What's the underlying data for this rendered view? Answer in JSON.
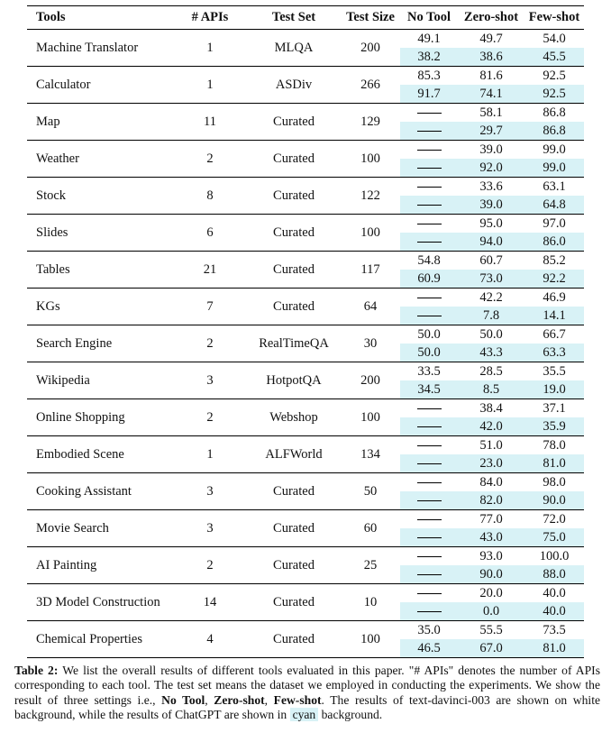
{
  "table": {
    "headers": {
      "tools": "Tools",
      "apis": "# APIs",
      "test_set": "Test Set",
      "test_size": "Test Size",
      "no_tool": "No Tool",
      "zero_shot": "Zero-shot",
      "few_shot": "Few-shot"
    },
    "rows": [
      {
        "tool": "Machine Translator",
        "apis": "1",
        "test_set": "MLQA",
        "test_size": "200",
        "no_tool": [
          "49.1",
          "38.2"
        ],
        "zero_shot": [
          "49.7",
          "38.6"
        ],
        "few_shot": [
          "54.0",
          "45.5"
        ]
      },
      {
        "tool": "Calculator",
        "apis": "1",
        "test_set": "ASDiv",
        "test_size": "266",
        "no_tool": [
          "85.3",
          "91.7"
        ],
        "zero_shot": [
          "81.6",
          "74.1"
        ],
        "few_shot": [
          "92.5",
          "92.5"
        ]
      },
      {
        "tool": "Map",
        "apis": "11",
        "test_set": "Curated",
        "test_size": "129",
        "no_tool": [
          "—",
          "—"
        ],
        "zero_shot": [
          "58.1",
          "29.7"
        ],
        "few_shot": [
          "86.8",
          "86.8"
        ]
      },
      {
        "tool": "Weather",
        "apis": "2",
        "test_set": "Curated",
        "test_size": "100",
        "no_tool": [
          "—",
          "—"
        ],
        "zero_shot": [
          "39.0",
          "92.0"
        ],
        "few_shot": [
          "99.0",
          "99.0"
        ]
      },
      {
        "tool": "Stock",
        "apis": "8",
        "test_set": "Curated",
        "test_size": "122",
        "no_tool": [
          "—",
          "—"
        ],
        "zero_shot": [
          "33.6",
          "39.0"
        ],
        "few_shot": [
          "63.1",
          "64.8"
        ]
      },
      {
        "tool": "Slides",
        "apis": "6",
        "test_set": "Curated",
        "test_size": "100",
        "no_tool": [
          "—",
          "—"
        ],
        "zero_shot": [
          "95.0",
          "94.0"
        ],
        "few_shot": [
          "97.0",
          "86.0"
        ]
      },
      {
        "tool": "Tables",
        "apis": "21",
        "test_set": "Curated",
        "test_size": "117",
        "no_tool": [
          "54.8",
          "60.9"
        ],
        "zero_shot": [
          "60.7",
          "73.0"
        ],
        "few_shot": [
          "85.2",
          "92.2"
        ]
      },
      {
        "tool": "KGs",
        "apis": "7",
        "test_set": "Curated",
        "test_size": "64",
        "no_tool": [
          "—",
          "—"
        ],
        "zero_shot": [
          "42.2",
          "7.8"
        ],
        "few_shot": [
          "46.9",
          "14.1"
        ]
      },
      {
        "tool": "Search Engine",
        "apis": "2",
        "test_set": "RealTimeQA",
        "test_size": "30",
        "no_tool": [
          "50.0",
          "50.0"
        ],
        "zero_shot": [
          "50.0",
          "43.3"
        ],
        "few_shot": [
          "66.7",
          "63.3"
        ]
      },
      {
        "tool": "Wikipedia",
        "apis": "3",
        "test_set": "HotpotQA",
        "test_size": "200",
        "no_tool": [
          "33.5",
          "34.5"
        ],
        "zero_shot": [
          "28.5",
          "8.5"
        ],
        "few_shot": [
          "35.5",
          "19.0"
        ]
      },
      {
        "tool": "Online Shopping",
        "apis": "2",
        "test_set": "Webshop",
        "test_size": "100",
        "no_tool": [
          "—",
          "—"
        ],
        "zero_shot": [
          "38.4",
          "42.0"
        ],
        "few_shot": [
          "37.1",
          "35.9"
        ]
      },
      {
        "tool": "Embodied Scene",
        "apis": "1",
        "test_set": "ALFWorld",
        "test_size": "134",
        "no_tool": [
          "—",
          "—"
        ],
        "zero_shot": [
          "51.0",
          "23.0"
        ],
        "few_shot": [
          "78.0",
          "81.0"
        ]
      },
      {
        "tool": "Cooking Assistant",
        "apis": "3",
        "test_set": "Curated",
        "test_size": "50",
        "no_tool": [
          "—",
          "—"
        ],
        "zero_shot": [
          "84.0",
          "82.0"
        ],
        "few_shot": [
          "98.0",
          "90.0"
        ]
      },
      {
        "tool": "Movie Search",
        "apis": "3",
        "test_set": "Curated",
        "test_size": "60",
        "no_tool": [
          "—",
          "—"
        ],
        "zero_shot": [
          "77.0",
          "43.0"
        ],
        "few_shot": [
          "72.0",
          "75.0"
        ]
      },
      {
        "tool": "AI Painting",
        "apis": "2",
        "test_set": "Curated",
        "test_size": "25",
        "no_tool": [
          "—",
          "—"
        ],
        "zero_shot": [
          "93.0",
          "90.0"
        ],
        "few_shot": [
          "100.0",
          "88.0"
        ]
      },
      {
        "tool": "3D Model Construction",
        "apis": "14",
        "test_set": "Curated",
        "test_size": "10",
        "no_tool": [
          "—",
          "—"
        ],
        "zero_shot": [
          "20.0",
          "0.0"
        ],
        "few_shot": [
          "40.0",
          "40.0"
        ]
      },
      {
        "tool": "Chemical Properties",
        "apis": "4",
        "test_set": "Curated",
        "test_size": "100",
        "no_tool": [
          "35.0",
          "46.5"
        ],
        "zero_shot": [
          "55.5",
          "67.0"
        ],
        "few_shot": [
          "73.5",
          "81.0"
        ]
      }
    ]
  },
  "caption": {
    "label": "Table 2:",
    "text_1": " We list the overall results of different tools evaluated in this paper. \"# APIs\" denotes the number of APIs corresponding to each tool. The test set means the dataset we employed in conducting the experiments. We show the result of three settings i.e., ",
    "no_tool": "No Tool",
    "sep_1": ", ",
    "zero_shot": "Zero-shot",
    "sep_2": ", ",
    "few_shot": "Few-shot",
    "text_2": ". The results of text-davinci-003 are shown on white background, while the results of ChatGPT are shown in ",
    "cyan_word": "cyan",
    "text_3": " background."
  },
  "colors": {
    "chatgpt_highlight": "#d8f2f6",
    "rule": "#000000",
    "text": "#111111"
  }
}
